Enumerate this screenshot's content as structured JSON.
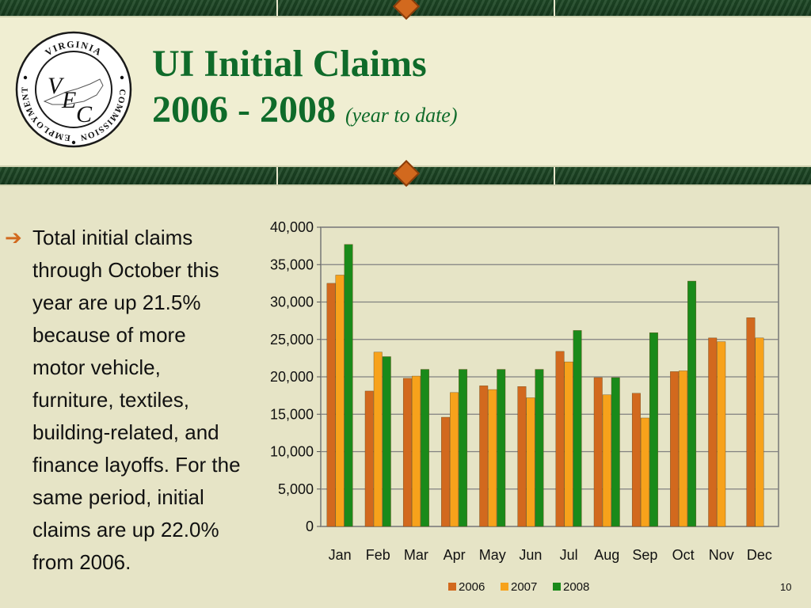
{
  "header": {
    "title_line1": "UI Initial Claims",
    "title_line2": "2006 - 2008",
    "title_suffix": "(year to date)"
  },
  "logo": {
    "ring_top": "VIRGINIA",
    "ring_left": "EMPLOYMENT",
    "ring_right": "COMMISSION",
    "initials": [
      "V",
      "E",
      "C"
    ]
  },
  "body": {
    "bullet_text": "Total initial claims through October this year are up 21.5% because of more motor vehicle, furniture, textiles, building-related, and finance layoffs. For the same period, initial claims are up 22.0% from 2006."
  },
  "page_number": "10",
  "colors": {
    "title": "#0F6B2A",
    "accent": "#D2691E",
    "series_2006": "#D2691E",
    "series_2007": "#F7A21B",
    "series_2008": "#1A8A1A"
  },
  "chart_data": {
    "type": "bar",
    "categories": [
      "Jan",
      "Feb",
      "Mar",
      "Apr",
      "May",
      "Jun",
      "Jul",
      "Aug",
      "Sep",
      "Oct",
      "Nov",
      "Dec"
    ],
    "series": [
      {
        "name": "2006",
        "values": [
          32500,
          18100,
          19800,
          14600,
          18800,
          18700,
          23400,
          19900,
          17800,
          20700,
          25200,
          27900
        ]
      },
      {
        "name": "2007",
        "values": [
          33600,
          23300,
          20100,
          17900,
          18300,
          17200,
          22000,
          17600,
          14500,
          20800,
          24700,
          25200
        ]
      },
      {
        "name": "2008",
        "values": [
          37700,
          22700,
          21000,
          21000,
          21000,
          21000,
          26200,
          19900,
          25900,
          32800,
          null,
          null
        ]
      }
    ],
    "ylim": [
      0,
      40000
    ],
    "yticks": [
      0,
      5000,
      10000,
      15000,
      20000,
      25000,
      30000,
      35000,
      40000
    ],
    "ytick_labels": [
      "0",
      "5,000",
      "10,000",
      "15,000",
      "20,000",
      "25,000",
      "30,000",
      "35,000",
      "40,000"
    ],
    "grid": true,
    "legend_position": "bottom"
  }
}
